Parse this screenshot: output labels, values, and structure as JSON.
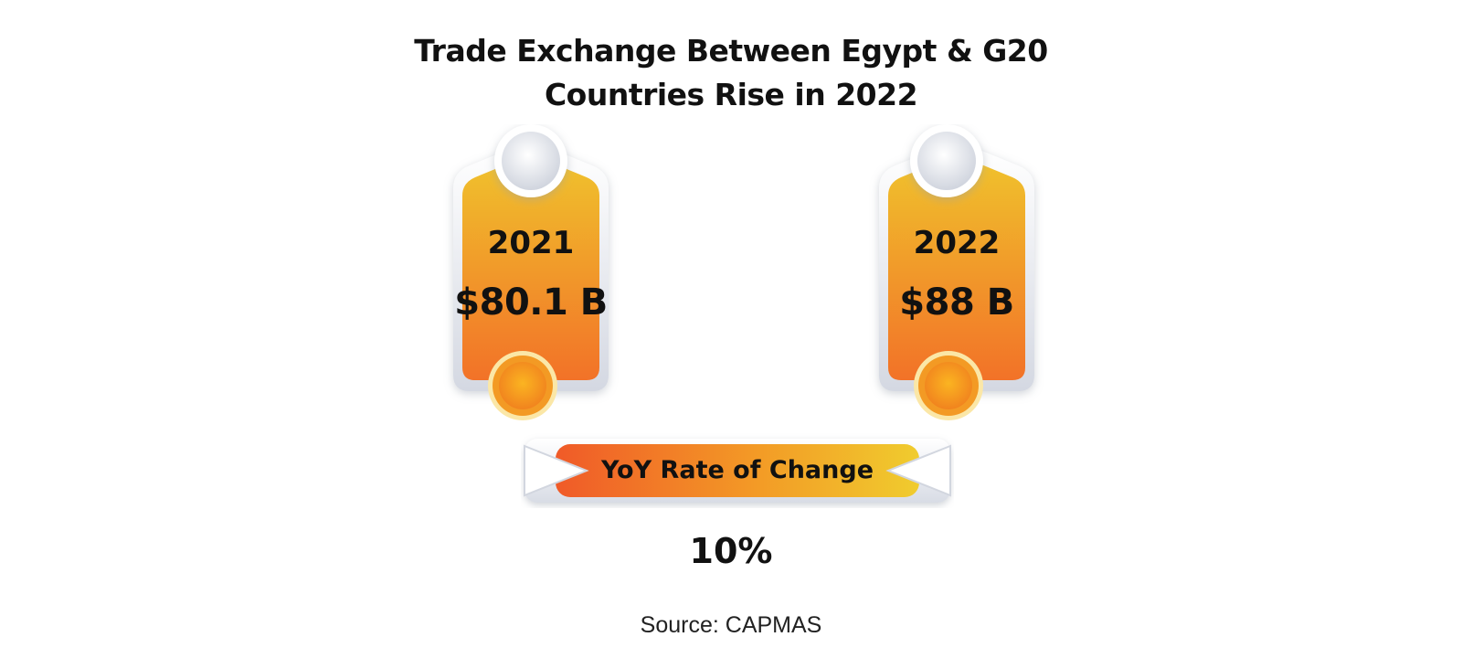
{
  "title": {
    "line1": "Trade Exchange Between Egypt & G20",
    "line2": "Countries Rise in 2022"
  },
  "cards": [
    {
      "year": "2021",
      "value": "$80.1 B"
    },
    {
      "year": "2022",
      "value": "$88 B"
    }
  ],
  "change": {
    "label": "YoY Rate of Change",
    "value": "10%"
  },
  "source": "Source: CAPMAS",
  "colors": {
    "tag_top": "#f0bf2c",
    "tag_bottom": "#f27527",
    "ring": "#f39a24",
    "text": "#111111"
  }
}
